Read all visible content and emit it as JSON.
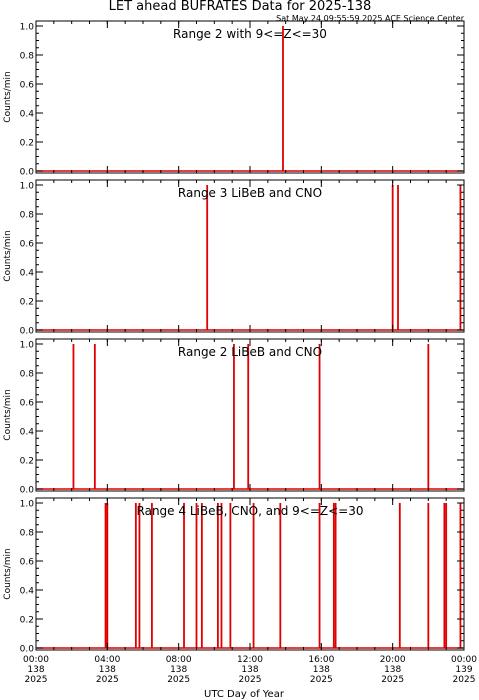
{
  "header": {
    "title": "LET ahead BUFRATES Data for 2025-138",
    "timestamp": "Sat May 24 09:55:59 2025 ACE Science Center"
  },
  "colors": {
    "trace": "#e00000",
    "panel_label": "#0000cc",
    "axis": "#000000"
  },
  "x_axis": {
    "label": "UTC Day of Year",
    "ticks": [
      {
        "time": "00:00",
        "doy": "138",
        "year": "2025",
        "hour": 0
      },
      {
        "time": "04:00",
        "doy": "138",
        "year": "2025",
        "hour": 4
      },
      {
        "time": "08:00",
        "doy": "138",
        "year": "2025",
        "hour": 8
      },
      {
        "time": "12:00",
        "doy": "138",
        "year": "2025",
        "hour": 12
      },
      {
        "time": "16:00",
        "doy": "138",
        "year": "2025",
        "hour": 16
      },
      {
        "time": "20:00",
        "doy": "138",
        "year": "2025",
        "hour": 20
      },
      {
        "time": "00:00",
        "doy": "139",
        "year": "2025",
        "hour": 24
      }
    ]
  },
  "chart_data": [
    {
      "type": "line",
      "title": "Range 2 with 9<=Z<=30",
      "ylabel": "Counts/min",
      "ylim": [
        0,
        1
      ],
      "yticks": [
        "0.0",
        "0.2",
        "0.4",
        "0.6",
        "0.8",
        "1.0"
      ],
      "xlim_hours": [
        0,
        24
      ],
      "spikes_hours": [
        13.85
      ]
    },
    {
      "type": "line",
      "title": "Range 3 LiBeB and CNO",
      "ylabel": "Counts/min",
      "ylim": [
        0,
        1
      ],
      "yticks": [
        "0.0",
        "0.2",
        "0.4",
        "0.6",
        "0.8",
        "1.0"
      ],
      "xlim_hours": [
        0,
        24
      ],
      "spikes_hours": [
        9.6,
        20.0,
        20.3,
        23.8
      ]
    },
    {
      "type": "line",
      "title": "Range 2 LiBeB and CNO",
      "ylabel": "Counts/min",
      "ylim": [
        0,
        1
      ],
      "yticks": [
        "0.0",
        "0.2",
        "0.4",
        "0.6",
        "0.8",
        "1.0"
      ],
      "xlim_hours": [
        0,
        24
      ],
      "spikes_hours": [
        2.1,
        3.3,
        11.1,
        11.9,
        15.9,
        22.0
      ]
    },
    {
      "type": "line",
      "title": "Range 4 LiBeB, CNO, and 9<=Z<=30",
      "ylabel": "Counts/min",
      "ylim": [
        0,
        1
      ],
      "yticks": [
        "0.0",
        "0.2",
        "0.4",
        "0.6",
        "0.8",
        "1.0"
      ],
      "xlim_hours": [
        0,
        24
      ],
      "spikes_hours": [
        3.9,
        4.0,
        5.6,
        5.8,
        6.5,
        8.3,
        9.0,
        9.3,
        10.2,
        10.4,
        10.9,
        12.2,
        13.7,
        15.9,
        16.7,
        16.8,
        20.4,
        22.0,
        22.9,
        23.0,
        23.8
      ]
    }
  ]
}
